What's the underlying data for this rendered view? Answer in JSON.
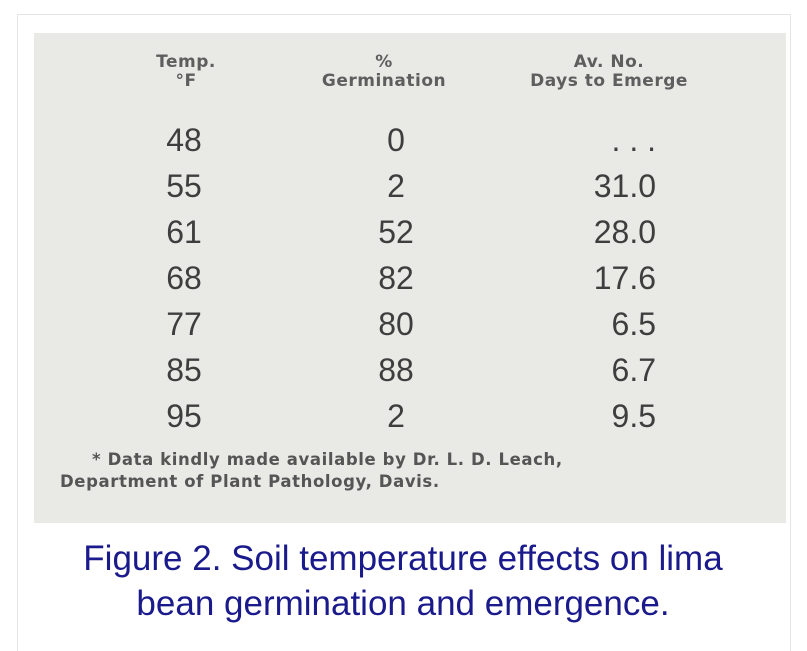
{
  "table": {
    "headers": {
      "temp": [
        "Temp.",
        "°F"
      ],
      "germination": [
        "%",
        "Germination"
      ],
      "days": [
        "Av. No.",
        "Days to Emerge"
      ]
    },
    "rows": [
      {
        "temp": "48",
        "germination": "0",
        "days": ". . ."
      },
      {
        "temp": "55",
        "germination": "2",
        "days": "31.0"
      },
      {
        "temp": "61",
        "germination": "52",
        "days": "28.0"
      },
      {
        "temp": "68",
        "germination": "82",
        "days": "17.6"
      },
      {
        "temp": "77",
        "germination": "80",
        "days": "6.5"
      },
      {
        "temp": "85",
        "germination": "88",
        "days": "6.7"
      },
      {
        "temp": "95",
        "germination": "2",
        "days": "9.5"
      }
    ],
    "footnote": [
      "* Data kindly made available by Dr. L. D. Leach,",
      "Department of Plant Pathology, Davis."
    ]
  },
  "caption": {
    "line1": "Figure 2. Soil temperature effects on lima",
    "line2": "bean germination and emergence."
  },
  "colors": {
    "caption_text": "#1a1a8c",
    "scan_background": "#e9e9e6",
    "table_text": "#3e3e3e"
  }
}
